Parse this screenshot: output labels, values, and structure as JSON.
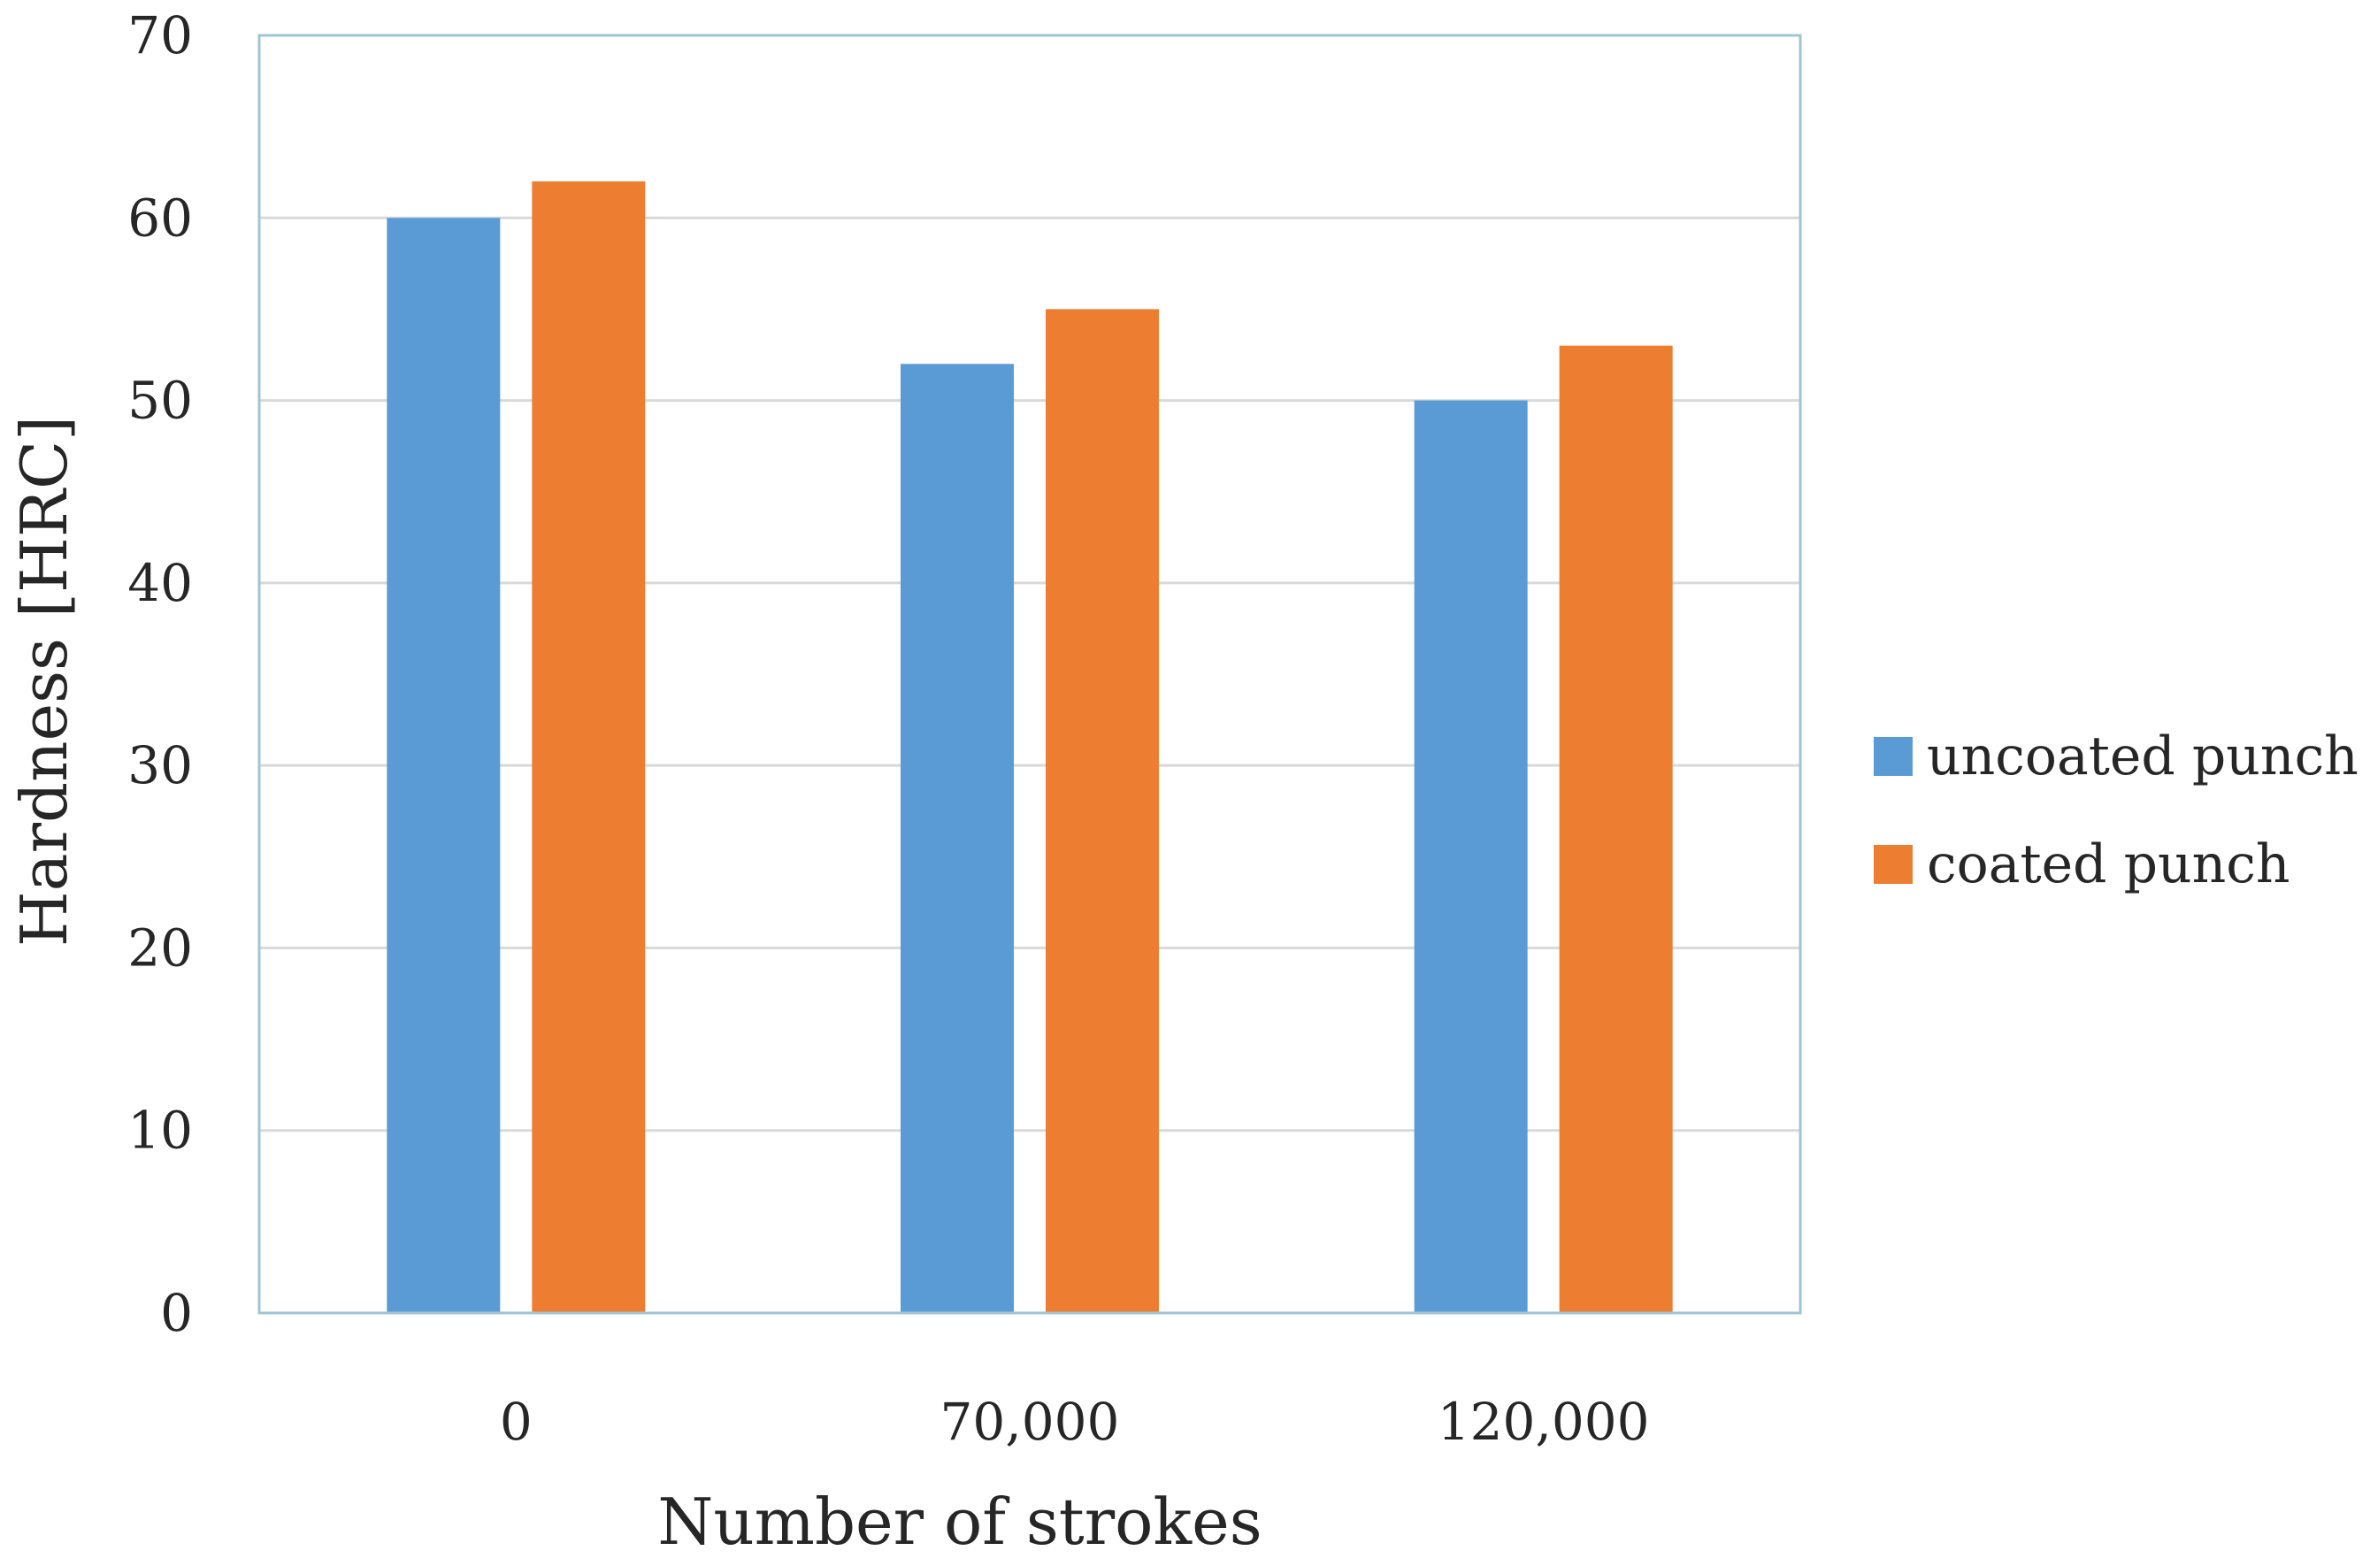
{
  "chart_data": {
    "type": "bar",
    "title": "",
    "xlabel": "Number of strokes",
    "ylabel": "Hardness [HRC]",
    "categories": [
      "0",
      "70,000",
      "120,000"
    ],
    "series": [
      {
        "name": "uncoated punch",
        "color": "#5b9bd5",
        "values": [
          60,
          52,
          50
        ]
      },
      {
        "name": "coated punch",
        "color": "#ed7d31",
        "values": [
          62,
          55,
          53
        ]
      }
    ],
    "ylim": [
      0,
      70
    ],
    "yticks": [
      "0",
      "10",
      "20",
      "30",
      "40",
      "50",
      "60",
      "70"
    ],
    "ytick_values": [
      0,
      10,
      20,
      30,
      40,
      50,
      60,
      70
    ],
    "grid": true,
    "legend_position": "right",
    "gridline_color": "#d9d9d9",
    "frame_color": "#9fc4d4"
  }
}
